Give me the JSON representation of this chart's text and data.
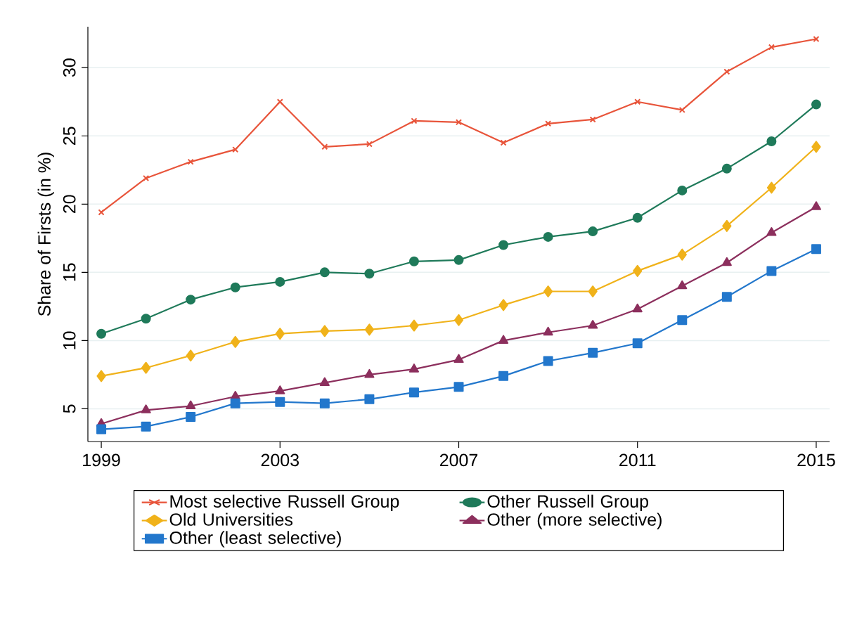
{
  "chart_data": {
    "type": "line",
    "ylabel": "Share of Firsts (in %)",
    "x": [
      1999,
      2000,
      2001,
      2002,
      2003,
      2004,
      2005,
      2006,
      2007,
      2008,
      2009,
      2010,
      2011,
      2012,
      2013,
      2014,
      2015
    ],
    "series": [
      {
        "name": "Most selective Russell Group",
        "color": "#e8543a",
        "marker": "cross",
        "values": [
          19.4,
          21.9,
          23.1,
          24.0,
          27.5,
          24.2,
          24.4,
          26.1,
          26.0,
          24.5,
          25.9,
          26.2,
          27.5,
          26.9,
          29.7,
          31.5,
          32.1
        ]
      },
      {
        "name": "Other Russell Group",
        "color": "#1f7a5a",
        "marker": "circle",
        "values": [
          10.5,
          11.6,
          13.0,
          13.9,
          14.3,
          15.0,
          14.9,
          15.8,
          15.9,
          17.0,
          17.6,
          18.0,
          19.0,
          21.0,
          22.6,
          24.6,
          27.3
        ]
      },
      {
        "name": "Old Universities",
        "color": "#f0b21a",
        "marker": "diamond",
        "values": [
          7.4,
          8.0,
          8.9,
          9.9,
          10.5,
          10.7,
          10.8,
          11.1,
          11.5,
          12.6,
          13.6,
          13.6,
          15.1,
          16.3,
          18.4,
          21.2,
          24.2
        ]
      },
      {
        "name": "Other (more selective)",
        "color": "#8c2f5d",
        "marker": "triangle",
        "values": [
          3.9,
          4.9,
          5.2,
          5.9,
          6.3,
          6.9,
          7.5,
          7.9,
          8.6,
          10.0,
          10.6,
          11.1,
          12.3,
          14.0,
          15.7,
          17.9,
          19.8
        ]
      },
      {
        "name": "Other (least selective)",
        "color": "#2277cc",
        "marker": "square",
        "values": [
          3.5,
          3.7,
          4.4,
          5.4,
          5.5,
          5.4,
          5.7,
          6.2,
          6.6,
          7.4,
          8.5,
          9.1,
          9.8,
          11.5,
          13.2,
          15.1,
          16.7
        ]
      }
    ],
    "xlim": [
      1998.7,
      2015.3
    ],
    "ylim": [
      2.6,
      33.0
    ],
    "xticks": [
      1999,
      2003,
      2007,
      2011,
      2015
    ],
    "yticks": [
      5,
      10,
      15,
      20,
      25,
      30
    ],
    "grid": "y",
    "legend": "bottom"
  }
}
